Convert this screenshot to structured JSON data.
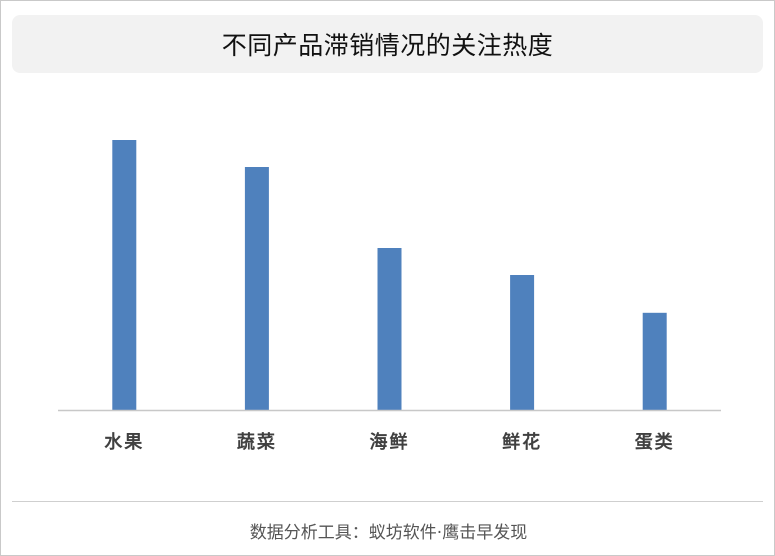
{
  "title": "不同产品滞销情况的关注热度",
  "footer": "数据分析工具：蚁坊软件·鹰击早发现",
  "colors": {
    "bar": "#4f81bd",
    "axis": "#c8c8c8",
    "label": "#404040"
  },
  "chart_data": {
    "type": "bar",
    "title": "不同产品滞销情况的关注热度",
    "categories": [
      "水果",
      "蔬菜",
      "海鲜",
      "鲜花",
      "蛋类"
    ],
    "values": [
      100,
      90,
      60,
      50,
      36
    ],
    "ylim": [
      0,
      100
    ],
    "grid": false,
    "legend": "none",
    "xlabel": "",
    "ylabel": ""
  }
}
